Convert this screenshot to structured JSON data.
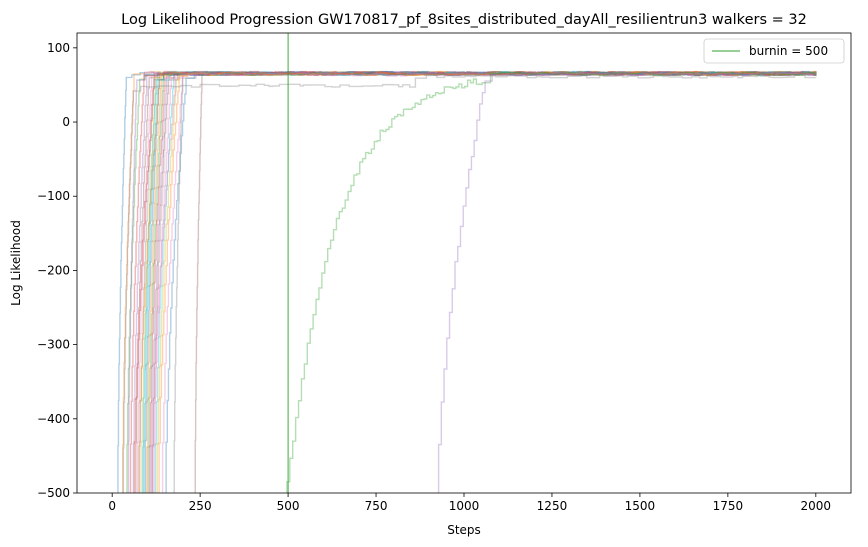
{
  "chart_data": {
    "type": "line",
    "title": "Log Likelihood Progression GW170817_pf_8sites_distributed_dayAll_resilientrun3 walkers = 32",
    "xlabel": "Steps",
    "ylabel": "Log Likelihood",
    "xlim": [
      -100,
      2100
    ],
    "ylim": [
      -500,
      120
    ],
    "xticks": [
      0,
      250,
      500,
      750,
      1000,
      1250,
      1500,
      1750,
      2000
    ],
    "yticks": [
      100,
      0,
      -100,
      -200,
      -300,
      -400,
      -500
    ],
    "grid": false,
    "legend": {
      "placement": "top-right",
      "entries": [
        "burnin = 500"
      ]
    },
    "burnin": {
      "label": "burnin = 500",
      "x": 500,
      "color": "#2ca02c"
    },
    "n_steps": 2000,
    "walker_opacity": 0.35,
    "walkers": [
      {
        "color": "#1f77b4",
        "rise_start": 15,
        "rise_end": 40,
        "plateau": 66
      },
      {
        "color": "#ff7f0e",
        "rise_start": 28,
        "rise_end": 62,
        "plateau": 67
      },
      {
        "color": "#2ca02c",
        "rise_start": 40,
        "rise_end": 78,
        "plateau": 66
      },
      {
        "color": "#d62728",
        "rise_start": 50,
        "rise_end": 90,
        "plateau": 67
      },
      {
        "color": "#9467bd",
        "rise_start": 58,
        "rise_end": 98,
        "plateau": 66
      },
      {
        "color": "#8c564b",
        "rise_start": 65,
        "rise_end": 105,
        "plateau": 67
      },
      {
        "color": "#e377c2",
        "rise_start": 70,
        "rise_end": 112,
        "plateau": 66
      },
      {
        "color": "#7f7f7f",
        "rise_start": 76,
        "rise_end": 118,
        "plateau": 67
      },
      {
        "color": "#bcbd22",
        "rise_start": 82,
        "rise_end": 124,
        "plateau": 66
      },
      {
        "color": "#17becf",
        "rise_start": 88,
        "rise_end": 130,
        "plateau": 67
      },
      {
        "color": "#1f77b4",
        "rise_start": 92,
        "rise_end": 134,
        "plateau": 66
      },
      {
        "color": "#ff7f0e",
        "rise_start": 96,
        "rise_end": 140,
        "plateau": 67
      },
      {
        "color": "#2ca02c",
        "rise_start": 100,
        "rise_end": 145,
        "plateau": 66
      },
      {
        "color": "#d62728",
        "rise_start": 104,
        "rise_end": 150,
        "plateau": 67
      },
      {
        "color": "#9467bd",
        "rise_start": 108,
        "rise_end": 155,
        "plateau": 66
      },
      {
        "color": "#8c564b",
        "rise_start": 112,
        "rise_end": 160,
        "plateau": 67
      },
      {
        "color": "#e377c2",
        "rise_start": 116,
        "rise_end": 168,
        "plateau": 66
      },
      {
        "color": "#17becf",
        "rise_start": 120,
        "rise_end": 175,
        "plateau": 67
      },
      {
        "color": "#bcbd22",
        "rise_start": 125,
        "rise_end": 182,
        "plateau": 66
      },
      {
        "color": "#ff7f0e",
        "rise_start": 130,
        "rise_end": 190,
        "plateau": 67
      },
      {
        "color": "#e377c2",
        "rise_start": 140,
        "rise_end": 200,
        "plateau": 66
      },
      {
        "color": "#1f77b4",
        "rise_start": 150,
        "rise_end": 210,
        "plateau": 67
      },
      {
        "color": "#d62728",
        "rise_start": 60,
        "rise_end": 120,
        "plateau": 66
      },
      {
        "color": "#9467bd",
        "rise_start": 45,
        "rise_end": 70,
        "plateau": 67
      },
      {
        "color": "#7f7f7f",
        "rise_start": 175,
        "rise_end": 200,
        "plateau": 66
      },
      {
        "color": "#8c564b",
        "rise_start": 235,
        "rise_end": 255,
        "plateau": 66
      },
      {
        "color": "#17becf",
        "rise_start": 85,
        "rise_end": 125,
        "plateau": 66
      },
      {
        "color": "#e377c2",
        "rise_start": 110,
        "rise_end": 180,
        "plateau": 65
      },
      {
        "color": "#ff7f0e",
        "rise_start": 72,
        "rise_end": 135,
        "plateau": 66
      },
      {
        "color": "#7f7f7f",
        "rise_start": 30,
        "rise_end": 60,
        "plateau": 50,
        "late_value": 62,
        "late_x": 850
      },
      {
        "color": "#2ca02c",
        "rise_start": 480,
        "rise_end": 1060,
        "plateau": 66,
        "slow": true
      },
      {
        "color": "#9467bd",
        "rise_start": 920,
        "rise_end": 1060,
        "plateau": 66
      }
    ]
  }
}
